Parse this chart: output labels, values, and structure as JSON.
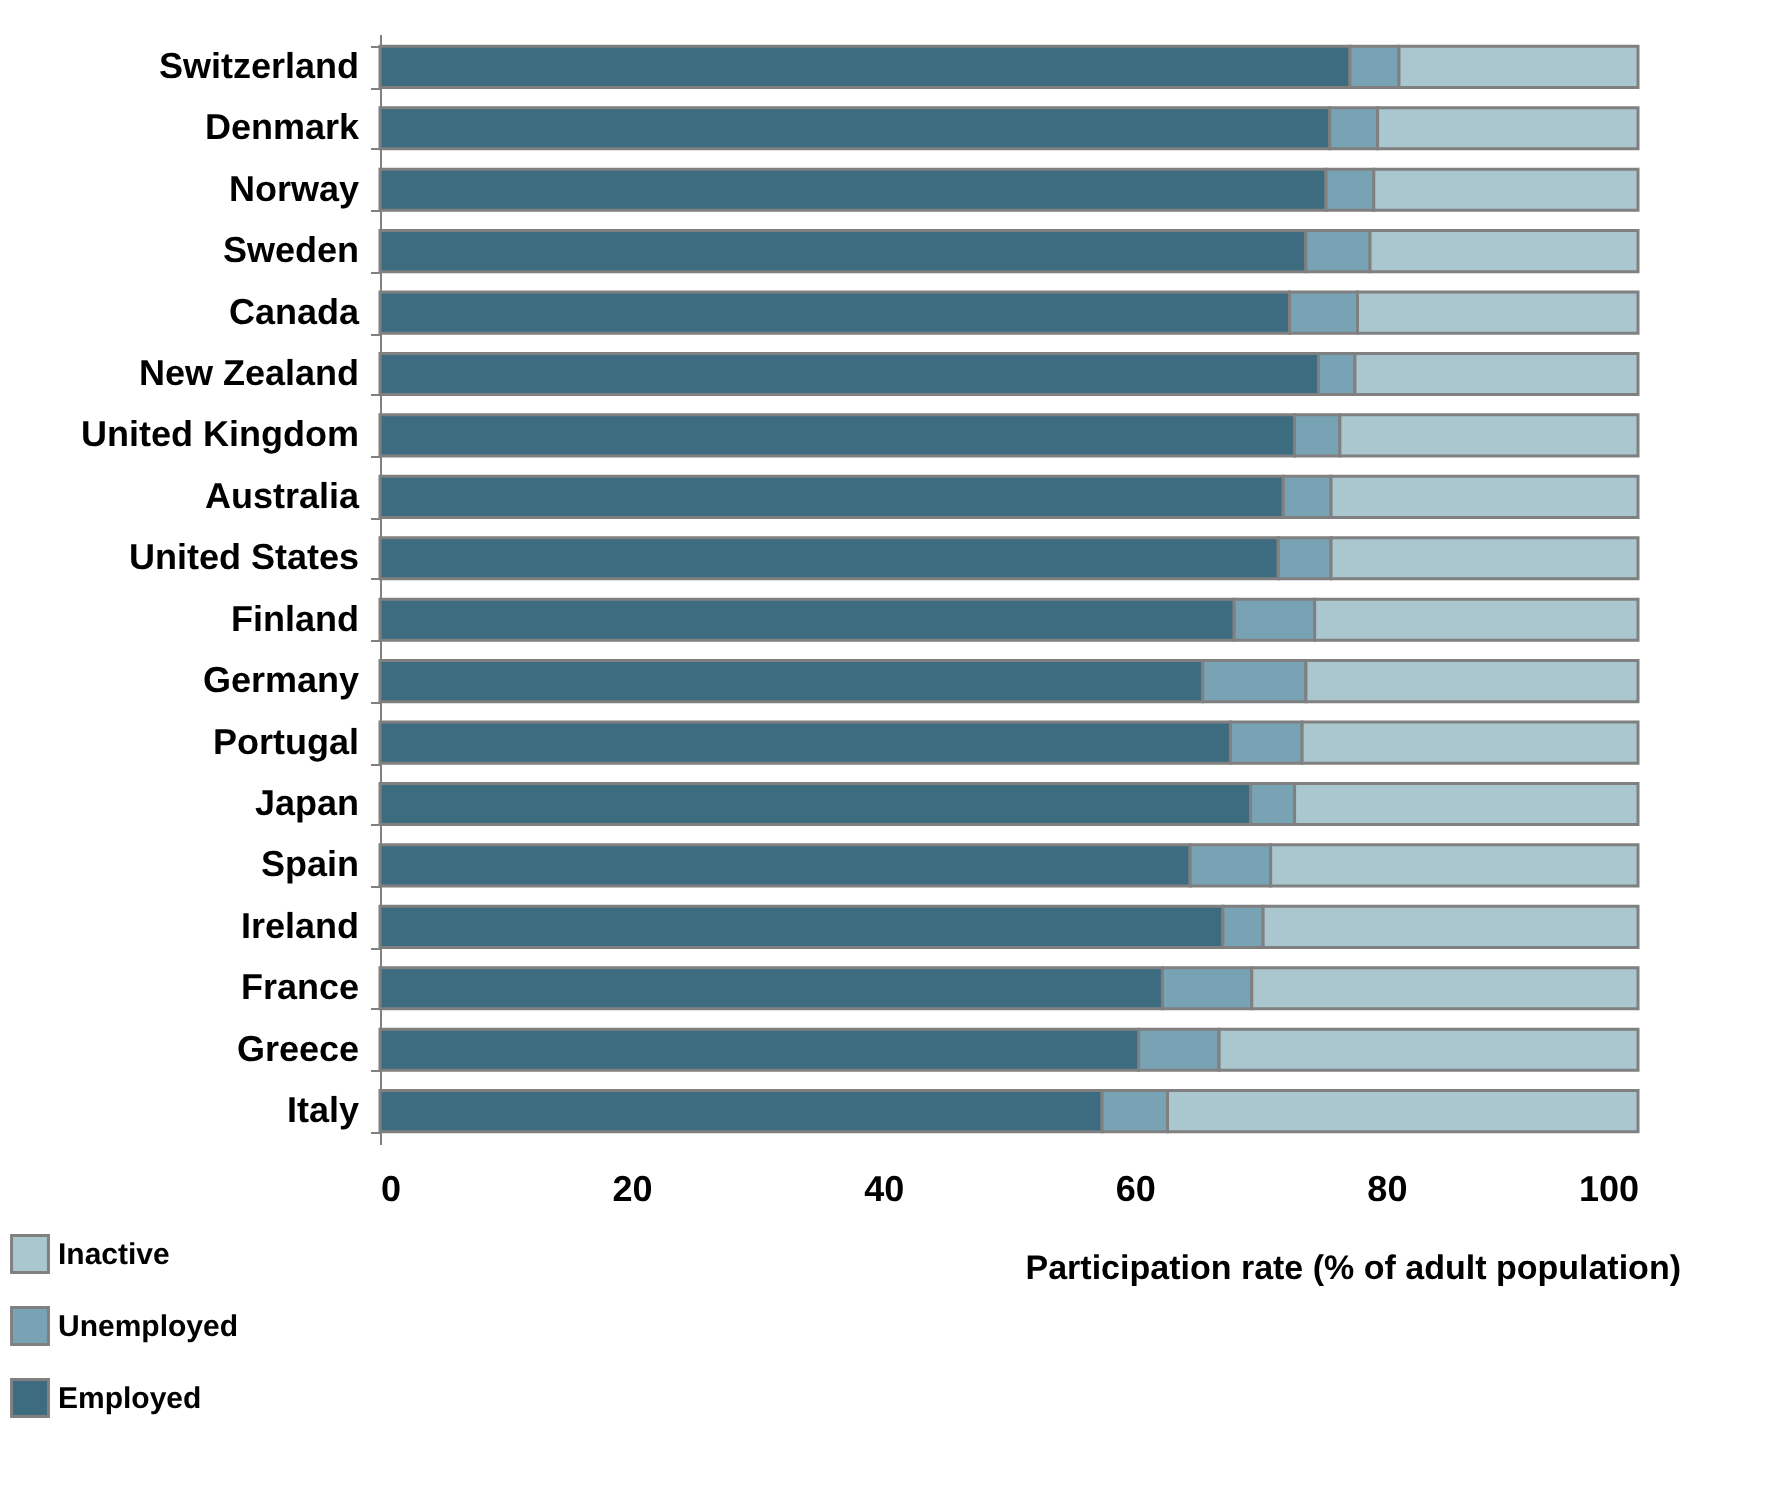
{
  "chart_data": {
    "type": "bar",
    "orientation": "horizontal",
    "stacked": true,
    "xlabel": "Participation rate (% of adult population)",
    "categories": [
      "Switzerland",
      "Denmark",
      "Norway",
      "Sweden",
      "Canada",
      "New Zealand",
      "United Kingdom",
      "Australia",
      "United States",
      "Finland",
      "Germany",
      "Portugal ",
      "Japan",
      "Spain",
      "Ireland",
      "France",
      "Greece",
      "Italy"
    ],
    "series": [
      {
        "name": "Employed",
        "color": "#3d6b80",
        "values": [
          77.1,
          75.5,
          75.2,
          73.6,
          72.3,
          74.6,
          72.7,
          71.8,
          71.4,
          67.9,
          65.4,
          67.6,
          69.2,
          64.4,
          67.0,
          62.2,
          60.3,
          57.4
        ]
      },
      {
        "name": "Unemployed",
        "color": "#78a3b5",
        "values": [
          3.9,
          3.8,
          3.8,
          5.1,
          5.4,
          2.9,
          3.6,
          3.8,
          4.2,
          6.4,
          8.2,
          5.7,
          3.5,
          6.4,
          3.2,
          7.1,
          6.4,
          5.2
        ]
      },
      {
        "name": "Inactive",
        "color": "#aac6cf",
        "values": [
          19.0,
          20.7,
          21.0,
          21.3,
          22.3,
          22.5,
          23.7,
          24.4,
          24.4,
          25.7,
          26.4,
          26.7,
          27.3,
          29.2,
          29.8,
          30.7,
          33.3,
          37.4
        ]
      }
    ],
    "xlim": [
      0,
      100
    ],
    "xticks": [
      0,
      20,
      40,
      60,
      80,
      100
    ],
    "grid": false,
    "legend": "bottom left"
  }
}
